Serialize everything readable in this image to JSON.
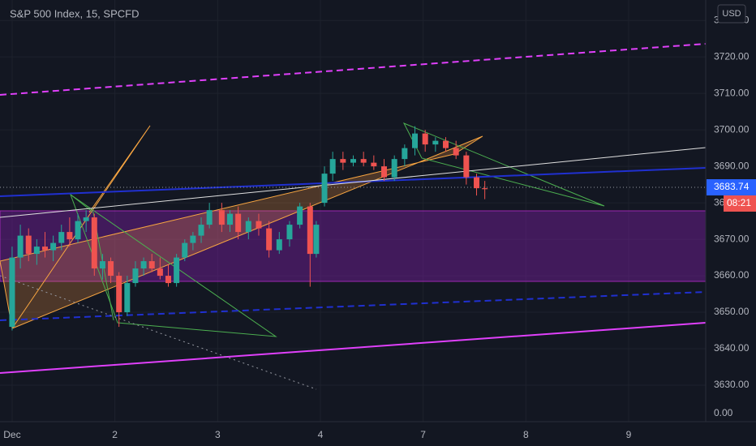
{
  "chart_data": {
    "type": "candlestick",
    "title": "S&P 500 Index, 15, SPCFD",
    "currency": "USD",
    "last_price_label": "3683.74",
    "countdown": "08:21",
    "extra_axis_label": "0.00",
    "up_color": "#26a69a",
    "down_color": "#ef5350",
    "xlim": [
      -0.118,
      6.75
    ],
    "xticks": [
      {
        "value": 0,
        "label": "Dec"
      },
      {
        "value": 1,
        "label": "2"
      },
      {
        "value": 2,
        "label": "3"
      },
      {
        "value": 3,
        "label": "4"
      },
      {
        "value": 4,
        "label": "7"
      },
      {
        "value": 5,
        "label": "8"
      },
      {
        "value": 6,
        "label": "9"
      }
    ],
    "ylim": [
      3620,
      3735.6
    ],
    "yticks": [
      {
        "value": 3630,
        "label": "3630.00"
      },
      {
        "value": 3640,
        "label": "3640.00"
      },
      {
        "value": 3650,
        "label": "3650.00"
      },
      {
        "value": 3660,
        "label": "3660.00"
      },
      {
        "value": 3670,
        "label": "3670.00"
      },
      {
        "value": 3680,
        "label": "3680.00"
      },
      {
        "value": 3690,
        "label": "3690.00"
      },
      {
        "value": 3700,
        "label": "3700.00"
      },
      {
        "value": 3710,
        "label": "3710.00"
      },
      {
        "value": 3720,
        "label": "3720.00"
      },
      {
        "value": 3730,
        "label": "3730.00"
      }
    ],
    "grid": true,
    "x": [
      0,
      0.08,
      0.16,
      0.24,
      0.32,
      0.4,
      0.48,
      0.56,
      0.64,
      0.72,
      0.8,
      0.88,
      0.96,
      1.04,
      1.12,
      1.2,
      1.28,
      1.36,
      1.44,
      1.52,
      1.6,
      1.68,
      1.76,
      1.84,
      1.92,
      2.04,
      2.12,
      2.2,
      2.3,
      2.4,
      2.5,
      2.6,
      2.7,
      2.8,
      2.9,
      2.96,
      3.04,
      3.12,
      3.22,
      3.32,
      3.42,
      3.52,
      3.62,
      3.72,
      3.82,
      3.92,
      4.02,
      4.12,
      4.22,
      4.32,
      4.42,
      4.52,
      4.6
    ],
    "open": [
      3646,
      3665,
      3671,
      3666,
      3668,
      3667,
      3669,
      3672,
      3670,
      3675,
      3676,
      3662,
      3664,
      3660,
      3650,
      3658,
      3662,
      3664,
      3662,
      3660,
      3658,
      3665,
      3669,
      3671,
      3674,
      3678,
      3674,
      3677,
      3672,
      3675,
      3673,
      3667,
      3670,
      3674,
      3679,
      3666,
      3680,
      3688,
      3692,
      3691,
      3692,
      3691,
      3690,
      3687,
      3692,
      3695,
      3699,
      3696,
      3697,
      3695,
      3693,
      3687,
      3684
    ],
    "high": [
      3668,
      3674,
      3673,
      3670,
      3672,
      3671,
      3674,
      3676,
      3677,
      3678,
      3677,
      3666,
      3665,
      3661,
      3660,
      3664,
      3665,
      3666,
      3665,
      3663,
      3666,
      3670,
      3672,
      3676,
      3680,
      3680,
      3678,
      3679,
      3676,
      3677,
      3675,
      3672,
      3675,
      3680,
      3680,
      3675,
      3690,
      3694,
      3694,
      3693,
      3694,
      3693,
      3692,
      3693,
      3696,
      3701,
      3700,
      3698,
      3698,
      3697,
      3694,
      3688,
      3686
    ],
    "low": [
      3645,
      3662,
      3664,
      3663,
      3665,
      3664,
      3667,
      3668,
      3669,
      3672,
      3660,
      3659,
      3658,
      3646,
      3649,
      3657,
      3660,
      3661,
      3659,
      3657,
      3657,
      3664,
      3667,
      3669,
      3673,
      3672,
      3672,
      3670,
      3670,
      3671,
      3665,
      3666,
      3668,
      3673,
      3657,
      3665,
      3679,
      3686,
      3689,
      3690,
      3690,
      3689,
      3686,
      3686,
      3690,
      3693,
      3694,
      3694,
      3694,
      3692,
      3685,
      3682,
      3681
    ],
    "close": [
      3665,
      3671,
      3666,
      3668,
      3667,
      3669,
      3672,
      3670,
      3675,
      3676,
      3662,
      3664,
      3660,
      3650,
      3658,
      3662,
      3664,
      3662,
      3660,
      3658,
      3665,
      3669,
      3671,
      3674,
      3678,
      3674,
      3677,
      3672,
      3675,
      3673,
      3667,
      3670,
      3674,
      3679,
      3666,
      3674,
      3688,
      3692,
      3691,
      3692,
      3691,
      3690,
      3687,
      3692,
      3695,
      3699,
      3696,
      3697,
      3695,
      3693,
      3687,
      3684,
      3683.74
    ]
  }
}
